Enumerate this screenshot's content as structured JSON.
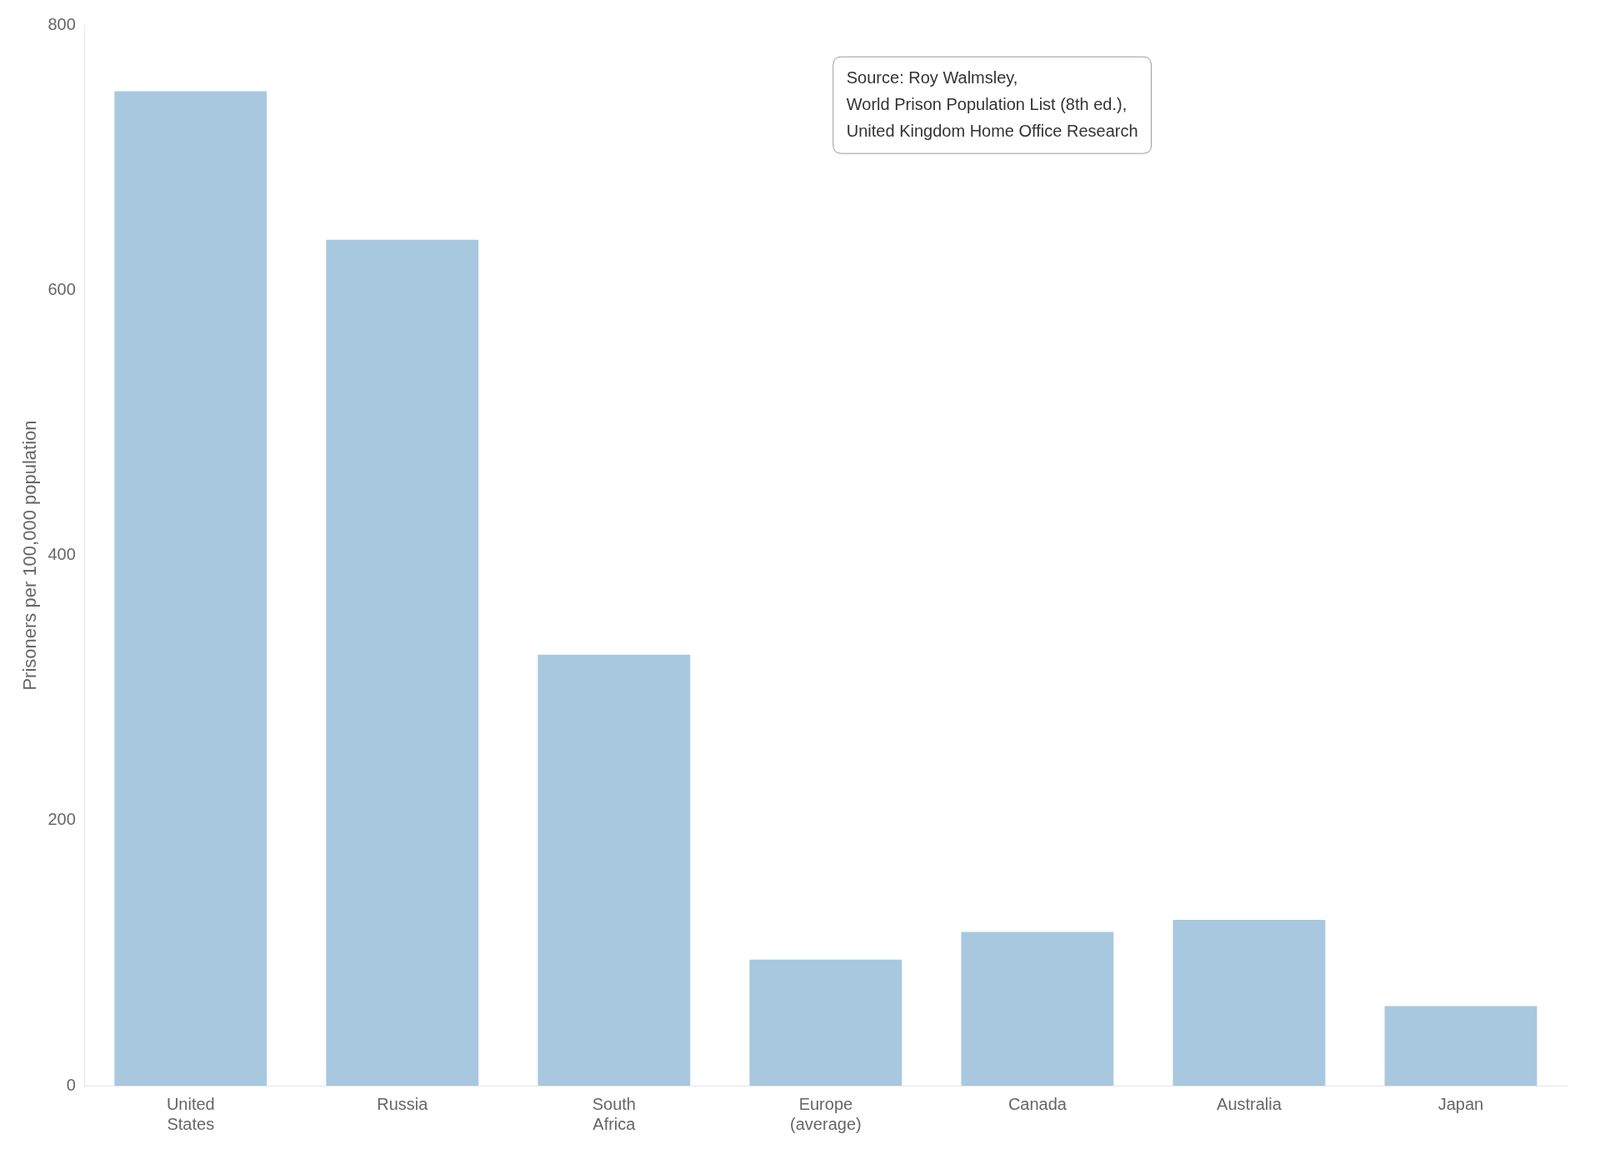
{
  "chart_data": {
    "type": "bar",
    "categories": [
      "United\nStates",
      "Russia",
      "South\nAfrica",
      "Europe\n(average)",
      "Canada",
      "Australia",
      "Japan"
    ],
    "values": [
      750,
      638,
      325,
      95,
      116,
      125,
      60
    ],
    "color": "#a8c8e0",
    "ylabel": "Prisoners per 100,000 population",
    "ylim": [
      0,
      800
    ],
    "yticks": [
      0,
      200,
      400,
      600,
      800
    ],
    "grid": false,
    "annotation": "Source: Roy Walmsley,\nWorld Prison Population List (8th ed.),\nUnited Kingdom Home Office Research"
  }
}
